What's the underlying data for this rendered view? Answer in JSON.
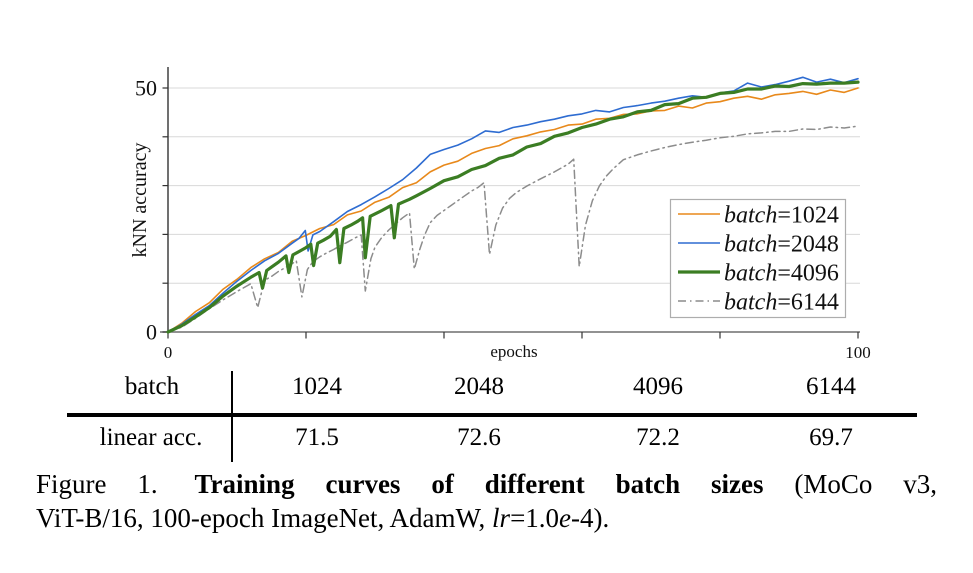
{
  "chart_data": {
    "type": "line",
    "title": "",
    "xlabel": "epochs",
    "ylabel": "kNN accuracy",
    "xlim": [
      0,
      100
    ],
    "ylim": [
      0,
      54.5
    ],
    "xticks": [
      0,
      20,
      40,
      60,
      80,
      100
    ],
    "xtick_labels": [
      "0",
      "",
      "",
      "",
      "",
      "100"
    ],
    "yticks": [
      0,
      10,
      20,
      30,
      40,
      50
    ],
    "ytick_labels": [
      "0",
      "",
      "",
      "",
      "",
      "50"
    ],
    "grid": "horizontal",
    "grid_color": "#d8d8d8",
    "axis_color": "#444444",
    "legend_position": "lower-right-inset",
    "legend_border_color": "#adadad",
    "series": [
      {
        "name": "batch=1024",
        "label_math": "batch",
        "label_value": "=1024",
        "color": "#E8891B",
        "width": 1.6,
        "dash": null,
        "points": [
          [
            0,
            0
          ],
          [
            2,
            1.8
          ],
          [
            4,
            4.2
          ],
          [
            6,
            6.0
          ],
          [
            8,
            8.8
          ],
          [
            10,
            10.8
          ],
          [
            12,
            13.2
          ],
          [
            14,
            15.0
          ],
          [
            16,
            16.3
          ],
          [
            18,
            18.6
          ],
          [
            20,
            19.8
          ],
          [
            22,
            21.2
          ],
          [
            24,
            22.0
          ],
          [
            26,
            24.0
          ],
          [
            28,
            24.8
          ],
          [
            30,
            26.6
          ],
          [
            32,
            27.6
          ],
          [
            34,
            29.6
          ],
          [
            36,
            30.6
          ],
          [
            38,
            32.8
          ],
          [
            40,
            34.2
          ],
          [
            42,
            35.0
          ],
          [
            44,
            36.6
          ],
          [
            46,
            37.6
          ],
          [
            48,
            38.2
          ],
          [
            50,
            39.6
          ],
          [
            52,
            40.2
          ],
          [
            54,
            41.0
          ],
          [
            56,
            41.5
          ],
          [
            58,
            42.4
          ],
          [
            60,
            42.6
          ],
          [
            62,
            43.6
          ],
          [
            64,
            43.8
          ],
          [
            66,
            44.6
          ],
          [
            68,
            44.7
          ],
          [
            70,
            45.3
          ],
          [
            72,
            45.4
          ],
          [
            74,
            46.3
          ],
          [
            76,
            45.9
          ],
          [
            78,
            46.9
          ],
          [
            80,
            47.2
          ],
          [
            82,
            47.9
          ],
          [
            84,
            48.3
          ],
          [
            86,
            47.7
          ],
          [
            88,
            48.6
          ],
          [
            90,
            48.9
          ],
          [
            92,
            49.3
          ],
          [
            94,
            48.7
          ],
          [
            96,
            49.6
          ],
          [
            98,
            49.1
          ],
          [
            100,
            50.0
          ]
        ]
      },
      {
        "name": "batch=2048",
        "label_math": "batch",
        "label_value": "=2048",
        "color": "#2E6CD1",
        "width": 1.6,
        "dash": null,
        "points": [
          [
            0,
            0
          ],
          [
            2,
            1.6
          ],
          [
            4,
            3.6
          ],
          [
            6,
            5.4
          ],
          [
            8,
            8.0
          ],
          [
            10,
            10.4
          ],
          [
            12,
            12.6
          ],
          [
            14,
            14.6
          ],
          [
            16,
            16.1
          ],
          [
            18,
            18.2
          ],
          [
            19,
            19.2
          ],
          [
            19.9,
            20.8
          ],
          [
            20.3,
            16.6
          ],
          [
            21,
            19.9
          ],
          [
            22,
            20.6
          ],
          [
            24,
            22.6
          ],
          [
            26,
            24.7
          ],
          [
            28,
            26.1
          ],
          [
            30,
            27.7
          ],
          [
            32,
            29.4
          ],
          [
            34,
            31.2
          ],
          [
            36,
            33.6
          ],
          [
            38,
            36.4
          ],
          [
            40,
            37.4
          ],
          [
            42,
            38.3
          ],
          [
            44,
            39.6
          ],
          [
            46,
            41.2
          ],
          [
            48,
            40.9
          ],
          [
            50,
            41.9
          ],
          [
            52,
            42.4
          ],
          [
            54,
            43.1
          ],
          [
            56,
            43.6
          ],
          [
            58,
            44.3
          ],
          [
            60,
            44.7
          ],
          [
            62,
            45.4
          ],
          [
            64,
            45.1
          ],
          [
            66,
            46.0
          ],
          [
            68,
            46.4
          ],
          [
            70,
            46.9
          ],
          [
            72,
            47.3
          ],
          [
            74,
            47.9
          ],
          [
            76,
            48.4
          ],
          [
            78,
            48.1
          ],
          [
            80,
            49.0
          ],
          [
            82,
            49.4
          ],
          [
            84,
            51.0
          ],
          [
            86,
            50.2
          ],
          [
            88,
            50.7
          ],
          [
            90,
            51.4
          ],
          [
            92,
            52.2
          ],
          [
            94,
            51.2
          ],
          [
            96,
            51.8
          ],
          [
            98,
            51.1
          ],
          [
            100,
            51.9
          ]
        ]
      },
      {
        "name": "batch=4096",
        "label_math": "batch",
        "label_value": "=4096",
        "color": "#3B7D23",
        "width": 3.2,
        "dash": null,
        "points": [
          [
            0,
            0
          ],
          [
            2,
            1.3
          ],
          [
            4,
            3.1
          ],
          [
            6,
            5.0
          ],
          [
            8,
            7.4
          ],
          [
            10,
            9.4
          ],
          [
            11,
            10.3
          ],
          [
            12,
            11.2
          ],
          [
            13.2,
            12.2
          ],
          [
            13.7,
            9.0
          ],
          [
            14.3,
            12.6
          ],
          [
            15,
            13.3
          ],
          [
            16,
            14.3
          ],
          [
            17.1,
            15.6
          ],
          [
            17.5,
            12.2
          ],
          [
            18.1,
            15.8
          ],
          [
            19,
            16.5
          ],
          [
            20,
            17.3
          ],
          [
            20.7,
            18.0
          ],
          [
            21.1,
            13.6
          ],
          [
            21.7,
            18.2
          ],
          [
            22.5,
            18.8
          ],
          [
            23.5,
            19.6
          ],
          [
            24.4,
            21.0
          ],
          [
            24.9,
            14.2
          ],
          [
            25.5,
            21.2
          ],
          [
            26.5,
            21.9
          ],
          [
            27.5,
            22.7
          ],
          [
            28.2,
            23.4
          ],
          [
            28.6,
            15.2
          ],
          [
            29.3,
            23.7
          ],
          [
            30,
            24.2
          ],
          [
            31,
            24.9
          ],
          [
            32.3,
            25.9
          ],
          [
            32.8,
            19.3
          ],
          [
            33.4,
            26.2
          ],
          [
            34.2,
            26.7
          ],
          [
            35,
            27.2
          ],
          [
            36,
            27.9
          ],
          [
            38,
            29.4
          ],
          [
            40,
            31.0
          ],
          [
            42,
            31.8
          ],
          [
            44,
            33.3
          ],
          [
            46,
            34.1
          ],
          [
            48,
            35.6
          ],
          [
            50,
            36.3
          ],
          [
            52,
            37.9
          ],
          [
            54,
            38.6
          ],
          [
            56,
            40.1
          ],
          [
            58,
            40.8
          ],
          [
            60,
            41.9
          ],
          [
            62,
            42.6
          ],
          [
            64,
            43.6
          ],
          [
            66,
            44.1
          ],
          [
            68,
            45.1
          ],
          [
            70,
            45.4
          ],
          [
            72,
            46.6
          ],
          [
            74,
            46.8
          ],
          [
            76,
            47.9
          ],
          [
            78,
            48.1
          ],
          [
            80,
            48.9
          ],
          [
            82,
            49.1
          ],
          [
            84,
            49.8
          ],
          [
            86,
            49.8
          ],
          [
            88,
            50.4
          ],
          [
            90,
            50.3
          ],
          [
            92,
            50.9
          ],
          [
            94,
            50.8
          ],
          [
            96,
            51.0
          ],
          [
            98,
            51.0
          ],
          [
            100,
            51.2
          ]
        ]
      },
      {
        "name": "batch=6144",
        "label_math": "batch",
        "label_value": "=6144",
        "color": "#8C8C8C",
        "width": 1.5,
        "dash": "8 4 1.5 4",
        "points": [
          [
            0,
            0
          ],
          [
            2,
            1.0
          ],
          [
            4,
            2.8
          ],
          [
            6,
            4.8
          ],
          [
            8,
            6.6
          ],
          [
            10,
            8.3
          ],
          [
            11,
            9.1
          ],
          [
            12,
            9.9
          ],
          [
            13,
            5.0
          ],
          [
            14,
            10.6
          ],
          [
            15,
            11.4
          ],
          [
            16,
            12.4
          ],
          [
            17,
            13.2
          ],
          [
            18,
            14.0
          ],
          [
            18.6,
            14.6
          ],
          [
            19.4,
            7.2
          ],
          [
            20.2,
            12.8
          ],
          [
            21,
            14.4
          ],
          [
            22,
            15.4
          ],
          [
            23,
            16.2
          ],
          [
            24,
            16.9
          ],
          [
            25,
            17.7
          ],
          [
            26,
            18.4
          ],
          [
            27,
            19.2
          ],
          [
            28,
            19.9
          ],
          [
            28.6,
            8.4
          ],
          [
            29.4,
            15.0
          ],
          [
            30,
            17.4
          ],
          [
            31,
            19.4
          ],
          [
            32,
            20.9
          ],
          [
            33,
            22.2
          ],
          [
            34,
            23.4
          ],
          [
            35,
            24.4
          ],
          [
            35.7,
            12.9
          ],
          [
            36.5,
            17.0
          ],
          [
            37.2,
            19.9
          ],
          [
            38,
            22.4
          ],
          [
            39,
            23.9
          ],
          [
            40,
            24.9
          ],
          [
            41,
            25.9
          ],
          [
            42,
            26.9
          ],
          [
            43,
            27.9
          ],
          [
            44,
            28.9
          ],
          [
            45,
            29.7
          ],
          [
            45.8,
            30.6
          ],
          [
            46.6,
            15.9
          ],
          [
            47.5,
            21.9
          ],
          [
            48.5,
            25.4
          ],
          [
            49.5,
            27.4
          ],
          [
            50.5,
            28.6
          ],
          [
            52,
            29.9
          ],
          [
            54,
            31.4
          ],
          [
            56,
            32.8
          ],
          [
            58,
            34.4
          ],
          [
            58.8,
            35.4
          ],
          [
            59.6,
            13.4
          ],
          [
            60.5,
            21.9
          ],
          [
            61.5,
            26.9
          ],
          [
            62.5,
            29.9
          ],
          [
            63.5,
            31.9
          ],
          [
            64.5,
            33.4
          ],
          [
            66,
            35.3
          ],
          [
            68,
            36.3
          ],
          [
            70,
            37.1
          ],
          [
            72,
            37.8
          ],
          [
            74,
            38.4
          ],
          [
            76,
            38.9
          ],
          [
            78,
            39.3
          ],
          [
            80,
            39.8
          ],
          [
            82,
            40.1
          ],
          [
            84,
            40.6
          ],
          [
            86,
            40.8
          ],
          [
            88,
            41.1
          ],
          [
            90,
            41.1
          ],
          [
            92,
            41.6
          ],
          [
            94,
            41.5
          ],
          [
            96,
            42.0
          ],
          [
            98,
            41.8
          ],
          [
            100,
            42.2
          ]
        ]
      }
    ]
  },
  "table": {
    "row1": {
      "label": "batch",
      "values": [
        "1024",
        "2048",
        "4096",
        "6144"
      ]
    },
    "row2": {
      "label": "linear acc.",
      "values": [
        "71.5",
        "72.6",
        "72.2",
        "69.7"
      ]
    }
  },
  "caption": {
    "figure_label": "Figure 1.",
    "title_bold": "Training curves of different batch sizes",
    "title_tail": "(MoCo v3,",
    "line2_prefix": "ViT-B/16, 100-epoch ImageNet, AdamW, ",
    "lr_var": "lr",
    "lr_eq": "=1.0",
    "e_var": "e",
    "tail": "-4)."
  }
}
